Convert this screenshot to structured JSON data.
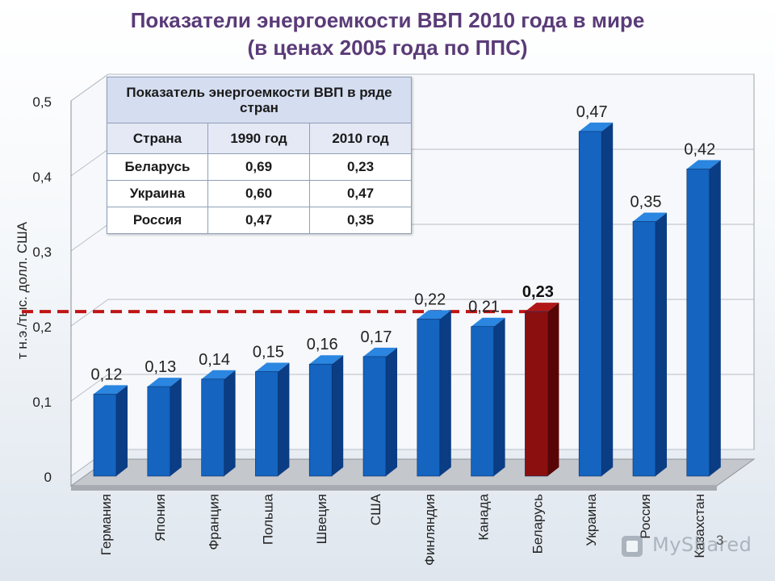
{
  "header": {
    "title_line1": "Показатели энергоемкости ВВП 2010 года в мире",
    "title_line2": "(в ценах 2005 года по ППС)"
  },
  "colors": {
    "bar": "#1464c0",
    "bar_side": "#0b3d84",
    "bar_top": "#2a86e0",
    "highlight_bar": "#8b0f0f",
    "highlight_side": "#5a0505",
    "highlight_top": "#b01818",
    "reference_line": "#c01515",
    "title": "#5a3b78"
  },
  "table": {
    "caption": "Показатель энергоемкости ВВП в ряде стран",
    "headers": [
      "Страна",
      "1990 год",
      "2010 год"
    ],
    "rows": [
      [
        "Беларусь",
        "0,69",
        "0,23"
      ],
      [
        "Украина",
        "0,60",
        "0,47"
      ],
      [
        "Россия",
        "0,47",
        "0,35"
      ]
    ]
  },
  "chart_data": {
    "type": "bar",
    "ylabel": "т н.э./тыс. долл. США",
    "ylim": [
      0,
      0.5
    ],
    "yticks": [
      "0",
      "0,1",
      "0,2",
      "0,3",
      "0,4",
      "0,5"
    ],
    "ytick_values": [
      0,
      0.1,
      0.2,
      0.3,
      0.4,
      0.5
    ],
    "categories": [
      "Германия",
      "Япония",
      "Франция",
      "Польша",
      "Швеция",
      "США",
      "Финляндия",
      "Канада",
      "Беларусь",
      "Украина",
      "Россия",
      "Казахстан"
    ],
    "values": [
      0.12,
      0.13,
      0.14,
      0.15,
      0.16,
      0.17,
      0.22,
      0.21,
      0.23,
      0.47,
      0.35,
      0.42
    ],
    "value_labels": [
      "0,12",
      "0,13",
      "0,14",
      "0,15",
      "0,16",
      "0,17",
      "0,22",
      "0,21",
      "0,23",
      "0,47",
      "0,35",
      "0,42"
    ],
    "highlight_index": 8,
    "reference_value": 0.23,
    "grid": true,
    "style": "3d-bar"
  },
  "footer": {
    "page_number": "3",
    "watermark": "MyShared"
  }
}
